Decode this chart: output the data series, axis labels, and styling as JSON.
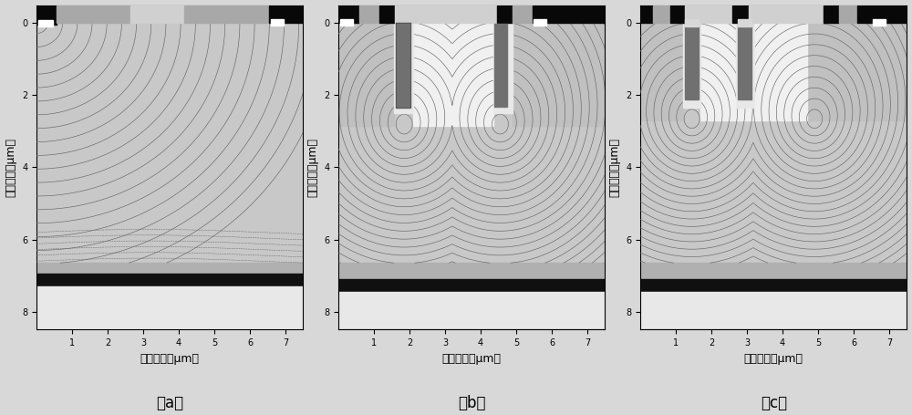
{
  "fig_width": 10.0,
  "fig_height": 4.55,
  "bg_color": "#d8d8d8",
  "xlabel": "横向尺寸（μm）",
  "ylabel": "纵向尺寸（μm）",
  "xlim": [
    0,
    7.5
  ],
  "ylim": [
    8.5,
    -0.5
  ],
  "xticks": [
    1,
    2,
    3,
    4,
    5,
    6,
    7
  ],
  "yticks": [
    0,
    2,
    4,
    6,
    8
  ],
  "subplot_labels": [
    "（a）",
    "（b）",
    "（c）"
  ],
  "label_fontsize": 12,
  "tick_fontsize": 7,
  "axis_label_fontsize": 9,
  "contour_color": "#666666",
  "contour_linewidth": 0.45,
  "si_body_color": "#c8c8c8",
  "box_color": "#b0b0b0",
  "substrate_black_color": "#101010",
  "substrate_light_color": "#e8e8e8",
  "metal_black": "#080808",
  "white": "#ffffff",
  "light_gray": "#d0d0d0",
  "mid_gray": "#a8a8a8",
  "dark_gray": "#505050",
  "poly_gray": "#808080",
  "drift_white": "#f0f0f0",
  "pbody_gray": "#c0c0c0"
}
